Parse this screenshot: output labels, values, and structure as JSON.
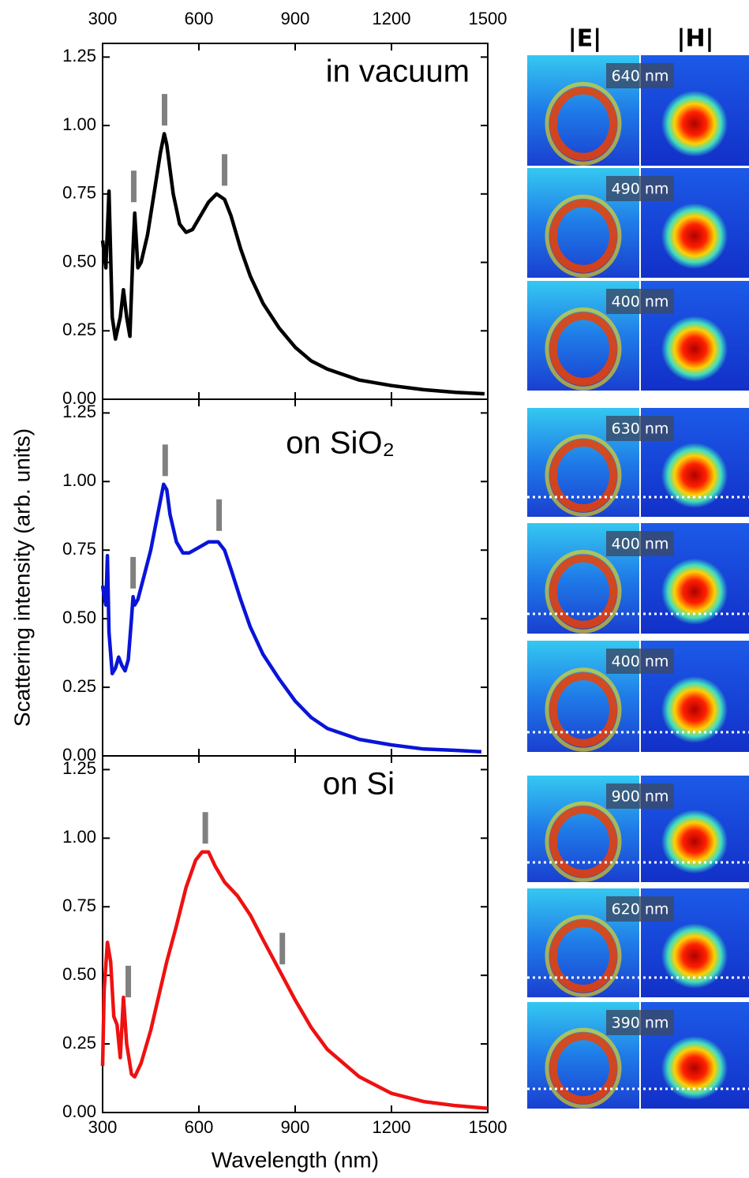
{
  "chart_data": [
    {
      "type": "line",
      "annotation": "in vacuum",
      "color": "#000000",
      "x": [
        300,
        310,
        320,
        330,
        340,
        355,
        365,
        375,
        385,
        395,
        400,
        410,
        420,
        440,
        460,
        480,
        492,
        500,
        520,
        540,
        560,
        580,
        600,
        630,
        655,
        680,
        700,
        730,
        760,
        800,
        850,
        900,
        950,
        1000,
        1100,
        1200,
        1300,
        1400,
        1490
      ],
      "values": [
        0.58,
        0.48,
        0.76,
        0.3,
        0.22,
        0.3,
        0.4,
        0.3,
        0.23,
        0.55,
        0.68,
        0.48,
        0.5,
        0.6,
        0.75,
        0.9,
        0.97,
        0.93,
        0.75,
        0.64,
        0.61,
        0.62,
        0.66,
        0.72,
        0.75,
        0.73,
        0.67,
        0.55,
        0.45,
        0.35,
        0.26,
        0.19,
        0.14,
        0.11,
        0.07,
        0.05,
        0.035,
        0.025,
        0.02
      ],
      "markers": [
        {
          "x": 397,
          "y": 0.72
        },
        {
          "x": 493,
          "y": 1.0
        },
        {
          "x": 680,
          "y": 0.78
        }
      ],
      "xlim": [
        300,
        1500
      ],
      "ylim": [
        0,
        1.3
      ],
      "xticks": [
        300,
        600,
        900,
        1200,
        1500
      ],
      "yticks": [
        {
          "value": 0,
          "label": "0.00"
        },
        {
          "value": 0.25,
          "label": "0.25"
        },
        {
          "value": 0.5,
          "label": "0.50"
        },
        {
          "value": 0.75,
          "label": "0.75"
        },
        {
          "value": 1,
          "label": "1.00"
        },
        {
          "value": 1.25,
          "label": "1.25"
        }
      ]
    },
    {
      "type": "line",
      "annotation": "on SiO₂",
      "color": "#0a14d8",
      "ylabel": "Scattering intensity (arb. units)",
      "x": [
        300,
        305,
        310,
        315,
        320,
        330,
        340,
        350,
        360,
        370,
        380,
        390,
        395,
        400,
        410,
        430,
        450,
        470,
        490,
        500,
        510,
        530,
        550,
        570,
        600,
        630,
        660,
        680,
        700,
        730,
        760,
        800,
        850,
        900,
        950,
        1000,
        1100,
        1200,
        1300,
        1400,
        1480
      ],
      "values": [
        0.62,
        0.58,
        0.55,
        0.73,
        0.45,
        0.3,
        0.32,
        0.36,
        0.33,
        0.31,
        0.35,
        0.5,
        0.58,
        0.55,
        0.57,
        0.66,
        0.75,
        0.87,
        0.99,
        0.97,
        0.88,
        0.78,
        0.74,
        0.74,
        0.76,
        0.78,
        0.78,
        0.75,
        0.68,
        0.57,
        0.47,
        0.37,
        0.28,
        0.2,
        0.14,
        0.1,
        0.06,
        0.04,
        0.025,
        0.02,
        0.015
      ],
      "markers": [
        {
          "x": 395,
          "y": 0.61
        },
        {
          "x": 495,
          "y": 1.02
        },
        {
          "x": 663,
          "y": 0.82
        }
      ],
      "xlim": [
        300,
        1500
      ],
      "ylim": [
        0,
        1.3
      ],
      "yticks": [
        {
          "value": 0,
          "label": "0.00"
        },
        {
          "value": 0.25,
          "label": "0.25"
        },
        {
          "value": 0.5,
          "label": "0.50"
        },
        {
          "value": 0.75,
          "label": "0.75"
        },
        {
          "value": 1,
          "label": "1.00"
        },
        {
          "value": 1.25,
          "label": "1.25"
        }
      ]
    },
    {
      "type": "line",
      "annotation": "on Si",
      "color": "#ee1111",
      "xlabel": "Wavelength (nm)",
      "x": [
        300,
        305,
        315,
        325,
        335,
        345,
        355,
        365,
        375,
        390,
        400,
        420,
        450,
        480,
        500,
        530,
        560,
        590,
        610,
        630,
        650,
        680,
        720,
        760,
        800,
        850,
        900,
        950,
        1000,
        1100,
        1200,
        1300,
        1400,
        1500
      ],
      "values": [
        0.17,
        0.45,
        0.62,
        0.55,
        0.35,
        0.32,
        0.2,
        0.42,
        0.25,
        0.14,
        0.13,
        0.18,
        0.3,
        0.45,
        0.55,
        0.68,
        0.82,
        0.92,
        0.95,
        0.95,
        0.9,
        0.84,
        0.79,
        0.72,
        0.63,
        0.52,
        0.41,
        0.31,
        0.23,
        0.13,
        0.07,
        0.04,
        0.025,
        0.015
      ],
      "markers": [
        {
          "x": 380,
          "y": 0.42
        },
        {
          "x": 620,
          "y": 0.98
        },
        {
          "x": 860,
          "y": 0.54
        }
      ],
      "xlim": [
        300,
        1500
      ],
      "ylim": [
        0,
        1.3
      ],
      "xticks": [
        300,
        600,
        900,
        1200,
        1500
      ],
      "yticks": [
        {
          "value": 0,
          "label": "0.00"
        },
        {
          "value": 0.25,
          "label": "0.25"
        },
        {
          "value": 0.5,
          "label": "0.50"
        },
        {
          "value": 0.75,
          "label": "0.75"
        },
        {
          "value": 1,
          "label": "1.00"
        },
        {
          "value": 1.25,
          "label": "1.25"
        }
      ]
    }
  ],
  "field_maps": {
    "headers": [
      "|E|",
      "|H|"
    ],
    "groups": [
      [
        "640 nm",
        "490 nm",
        "400 nm"
      ],
      [
        "630 nm",
        "400 nm",
        "400 nm"
      ],
      [
        "900 nm",
        "620 nm",
        "390 nm"
      ]
    ]
  }
}
